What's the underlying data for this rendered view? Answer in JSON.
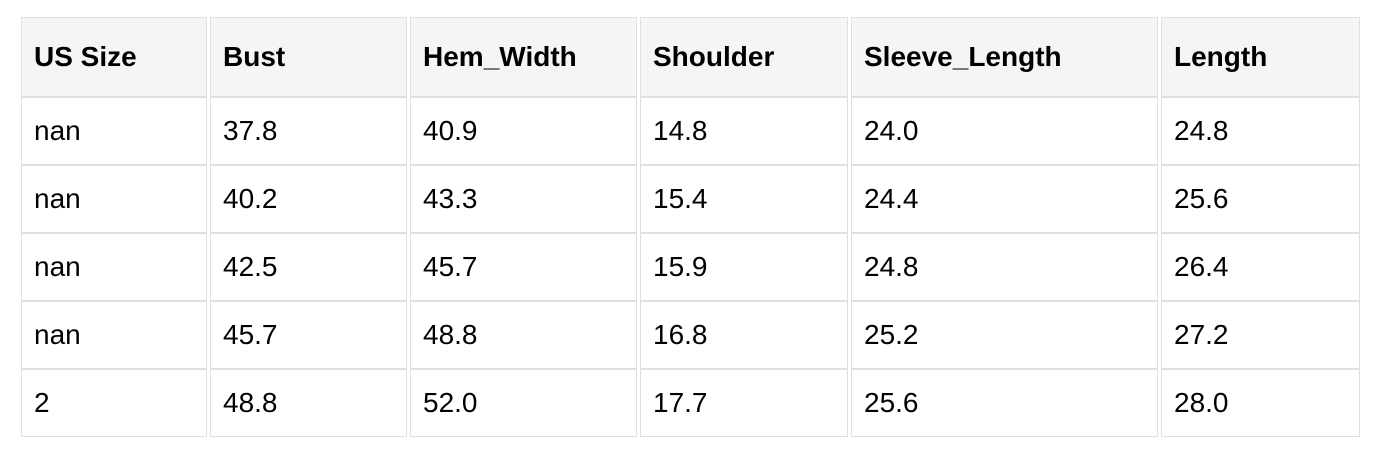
{
  "chart_data": {
    "type": "table",
    "columns": [
      "US Size",
      "Bust",
      "Hem_Width",
      "Shoulder",
      "Sleeve_Length",
      "Length"
    ],
    "rows": [
      [
        "nan",
        "37.8",
        "40.9",
        "14.8",
        "24.0",
        "24.8"
      ],
      [
        "nan",
        "40.2",
        "43.3",
        "15.4",
        "24.4",
        "25.6"
      ],
      [
        "nan",
        "42.5",
        "45.7",
        "15.9",
        "24.8",
        "26.4"
      ],
      [
        "nan",
        "45.7",
        "48.8",
        "16.8",
        "25.2",
        "27.2"
      ],
      [
        "2",
        "48.8",
        "52.0",
        "17.7",
        "25.6",
        "28.0"
      ]
    ]
  },
  "colors": {
    "page_bg": "#ffffff",
    "header_bg": "#f5f5f5",
    "cell_bg": "#ffffff",
    "border": "#e0e0e0",
    "text": "#000000"
  }
}
